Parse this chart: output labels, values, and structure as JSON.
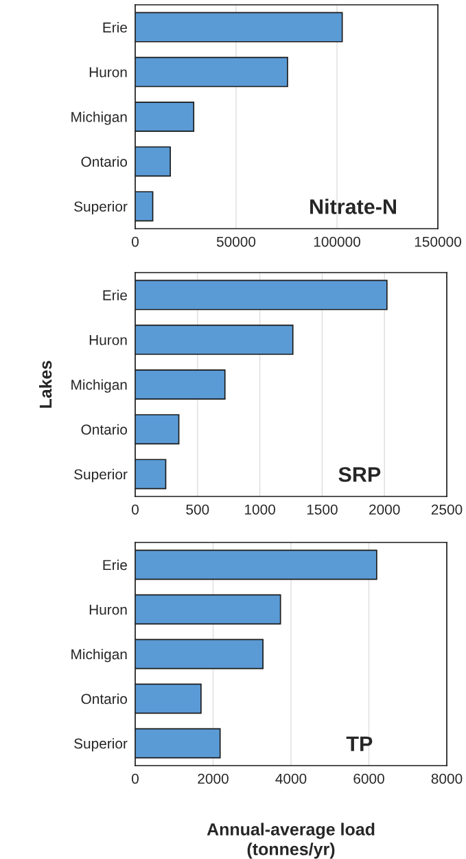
{
  "chart_data": [
    {
      "type": "bar",
      "orientation": "horizontal",
      "categories": [
        "Erie",
        "Huron",
        "Michigan",
        "Ontario",
        "Superior"
      ],
      "values": [
        102600,
        75500,
        29000,
        17400,
        8700
      ],
      "color": "#5b9bd5",
      "xlim": [
        0,
        150000
      ],
      "xticks": [
        0,
        50000,
        100000,
        150000
      ],
      "grid": "x",
      "annotations": [
        "Nitrate-N"
      ]
    },
    {
      "type": "bar",
      "orientation": "horizontal",
      "categories": [
        "Erie",
        "Huron",
        "Michigan",
        "Ontario",
        "Superior"
      ],
      "values": [
        2020,
        1265,
        720,
        350,
        245
      ],
      "color": "#5b9bd5",
      "xlim": [
        0,
        2500
      ],
      "xticks": [
        0,
        500,
        1000,
        1500,
        2000,
        2500
      ],
      "grid": "x",
      "ylabel": "Lakes",
      "annotations": [
        "SRP"
      ]
    },
    {
      "type": "bar",
      "orientation": "horizontal",
      "categories": [
        "Erie",
        "Huron",
        "Michigan",
        "Ontario",
        "Superior"
      ],
      "values": [
        6200,
        3730,
        3280,
        1690,
        2180
      ],
      "color": "#5b9bd5",
      "xlim": [
        0,
        8000
      ],
      "xticks": [
        0,
        2000,
        4000,
        6000,
        8000
      ],
      "grid": "x",
      "xlabel": "Annual-average load\n(tonnes/yr)",
      "annotations": [
        "TP"
      ]
    }
  ]
}
